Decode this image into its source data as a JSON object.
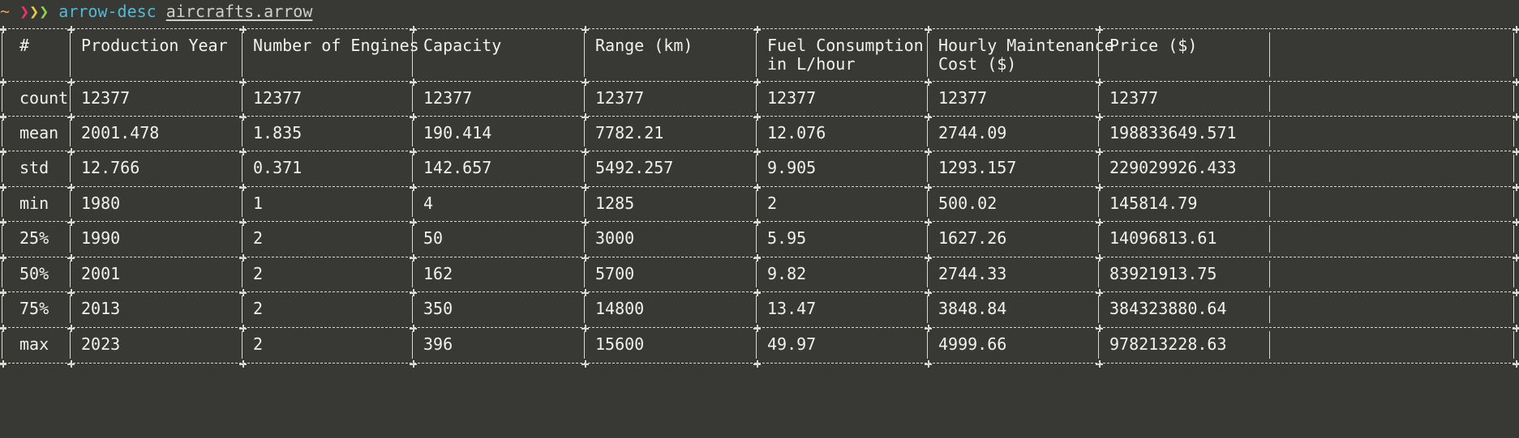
{
  "prompt": {
    "tilde": "~",
    "chevrons": [
      "❯",
      "❯",
      "❯"
    ],
    "command": "arrow-desc",
    "argument": "aircrafts.arrow"
  },
  "table": {
    "header_lines": [
      [
        "#",
        "Production Year",
        "Number of Engines",
        "Capacity",
        "Range (km)",
        "Fuel Consumption",
        "Hourly Maintenance",
        "Price ($)"
      ],
      [
        "",
        "",
        "",
        "",
        "",
        "in L/hour",
        "Cost ($)",
        ""
      ]
    ],
    "rows": [
      [
        "count",
        "12377",
        "12377",
        "12377",
        "12377",
        "12377",
        "12377",
        "12377"
      ],
      [
        "mean",
        "2001.478",
        "1.835",
        "190.414",
        "7782.21",
        "12.076",
        "2744.09",
        "198833649.571"
      ],
      [
        "std",
        "12.766",
        "0.371",
        "142.657",
        "5492.257",
        "9.905",
        "1293.157",
        "229029926.433"
      ],
      [
        "min",
        "1980",
        "1",
        "4",
        "1285",
        "2",
        "500.02",
        "145814.79"
      ],
      [
        "25%",
        "1990",
        "2",
        "50",
        "3000",
        "5.95",
        "1627.26",
        "14096813.61"
      ],
      [
        "50%",
        "2001",
        "2",
        "162",
        "5700",
        "9.82",
        "2744.33",
        "83921913.75"
      ],
      [
        "75%",
        "2013",
        "2",
        "350",
        "14800",
        "13.47",
        "3848.84",
        "384323880.64"
      ],
      [
        "max",
        "2023",
        "2",
        "396",
        "15600",
        "49.97",
        "4999.66",
        "978213228.63"
      ]
    ]
  }
}
